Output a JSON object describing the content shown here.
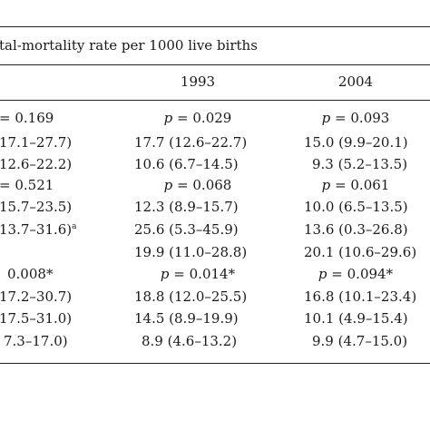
{
  "header": {
    "title": "tal-mortality rate per 1000 live births",
    "col_1993": "1993",
    "col_2004": "2004"
  },
  "rows": [
    {
      "c1": "= 0.169",
      "c2": "p = 0.029",
      "c3": "p = 0.093"
    },
    {
      "c1": "17.1–27.7)",
      "c2": "17.7 (12.6–22.7)",
      "c3": "15.0 (9.9–20.1)"
    },
    {
      "c1": "12.6–22.2)",
      "c2": "10.6 (6.7–14.5)",
      "c3": "9.3 (5.2–13.5)"
    },
    {
      "c1": "= 0.521",
      "c2": "p = 0.068",
      "c3": "p = 0.061"
    },
    {
      "c1": "15.7–23.5)",
      "c2": "12.3 (8.9–15.7)",
      "c3": "10.0 (6.5–13.5)"
    },
    {
      "c1": "13.7–31.6)",
      "c1_sup": "a",
      "c2": "25.6 (5.3–45.9)",
      "c3": "13.6 (0.3–26.8)"
    },
    {
      "c1": "",
      "c2": "19.9 (11.0–28.8)",
      "c3": "20.1 (10.6–29.6)"
    },
    {
      "c1": "0.008*",
      "c2": "p = 0.014*",
      "c3": "p = 0.094*"
    },
    {
      "c1": "17.2–30.7)",
      "c2": "18.8 (12.0–25.5)",
      "c3": "16.8 (10.1–23.4)"
    },
    {
      "c1": "17.5–31.0)",
      "c2": "14.5 (8.9–19.9)",
      "c3": "10.1 (4.9–15.4)"
    },
    {
      "c1": "7.3–17.0)",
      "c2": "8.9 (4.6–13.2)",
      "c3": "9.9 (4.7–15.0)"
    }
  ]
}
